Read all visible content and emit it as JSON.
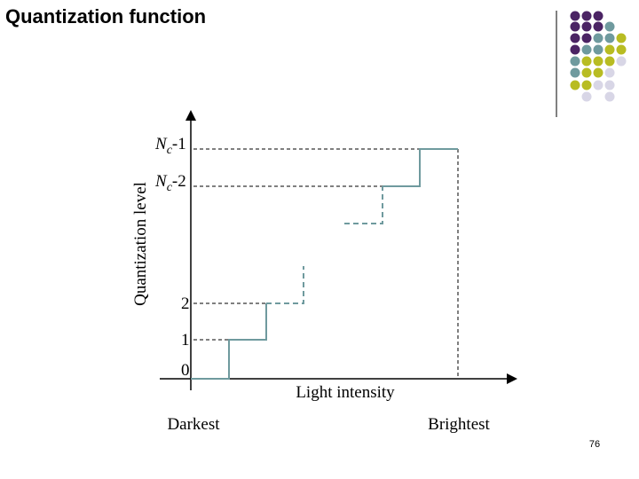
{
  "title": "Quantization function",
  "y_axis_label": "Quantization level",
  "x_axis_label": "Light intensity",
  "levels": [
    {
      "base": "N",
      "sub": "c",
      "suffix": "-1"
    },
    {
      "base": "N",
      "sub": "c",
      "suffix": "-2"
    },
    {
      "label": "2"
    },
    {
      "label": "1"
    },
    {
      "label": "0"
    }
  ],
  "x_ends": [
    "Darkest",
    "Brightest"
  ],
  "page_number": "76"
}
